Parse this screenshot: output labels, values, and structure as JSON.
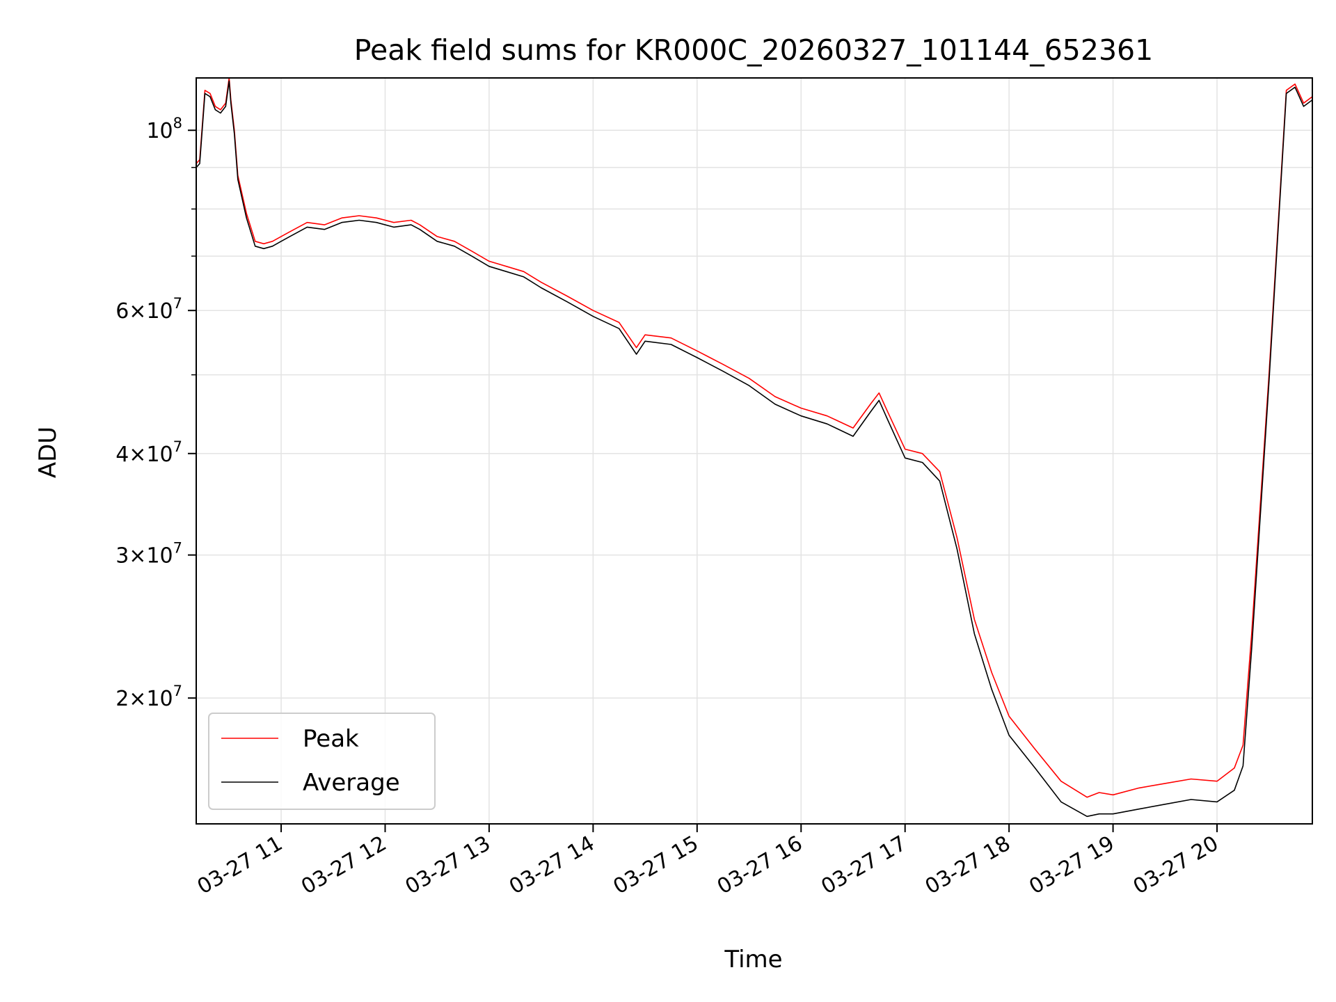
{
  "chart_data": {
    "type": "line",
    "title": "Peak field sums for KR000C_20260327_101144_652361",
    "xlabel": "Time",
    "ylabel": "ADU",
    "x_range": [
      "03-27 10:11",
      "03-27 20:55"
    ],
    "y_scale": "log",
    "ylim": [
      14000000,
      116000000
    ],
    "grid": true,
    "legend_position": "lower-left",
    "x_ticks": [
      "03-27 11",
      "03-27 12",
      "03-27 13",
      "03-27 14",
      "03-27 15",
      "03-27 16",
      "03-27 17",
      "03-27 18",
      "03-27 19",
      "03-27 20"
    ],
    "y_ticks": [
      {
        "value": 100000000,
        "mantissa": "",
        "exponent": "8"
      },
      {
        "value": 60000000,
        "mantissa": "6",
        "exponent": "7"
      },
      {
        "value": 40000000,
        "mantissa": "4",
        "exponent": "7"
      },
      {
        "value": 30000000,
        "mantissa": "3",
        "exponent": "7"
      },
      {
        "value": 20000000,
        "mantissa": "2",
        "exponent": "7"
      }
    ],
    "y_minor_ticks": [
      90000000,
      80000000,
      70000000,
      50000000
    ],
    "series": [
      {
        "name": "Peak",
        "color": "#ff0000",
        "x": [
          "10:11",
          "10:13",
          "10:16",
          "10:19",
          "10:22",
          "10:25",
          "10:28",
          "10:30",
          "10:31",
          "10:33",
          "10:35",
          "10:40",
          "10:45",
          "10:50",
          "10:55",
          "11:00",
          "11:05",
          "11:15",
          "11:25",
          "11:35",
          "11:45",
          "11:55",
          "12:05",
          "12:15",
          "12:20",
          "12:30",
          "12:40",
          "12:50",
          "13:00",
          "13:10",
          "13:20",
          "13:30",
          "13:45",
          "14:00",
          "14:15",
          "14:25",
          "14:30",
          "14:45",
          "15:00",
          "15:15",
          "15:30",
          "15:45",
          "16:00",
          "16:15",
          "16:20",
          "16:30",
          "16:40",
          "16:45",
          "16:50",
          "17:00",
          "17:10",
          "17:20",
          "17:30",
          "17:40",
          "17:50",
          "18:00",
          "18:15",
          "18:30",
          "18:45",
          "18:52",
          "19:00",
          "19:15",
          "19:30",
          "19:45",
          "20:00",
          "20:10",
          "20:15",
          "20:20",
          "20:30",
          "20:40",
          "20:45",
          "20:50",
          "20:55"
        ],
        "y": [
          91000000,
          92000000,
          112000000,
          111000000,
          107000000,
          106000000,
          108000000,
          116000000,
          109000000,
          100000000,
          88000000,
          79000000,
          73000000,
          72500000,
          73000000,
          74000000,
          75000000,
          77000000,
          76500000,
          78000000,
          78500000,
          78000000,
          77000000,
          77500000,
          76500000,
          74000000,
          73000000,
          71000000,
          69000000,
          68000000,
          67000000,
          65000000,
          62500000,
          60000000,
          58000000,
          54000000,
          56000000,
          55500000,
          53500000,
          51500000,
          49500000,
          47000000,
          45500000,
          44500000,
          44000000,
          43000000,
          46000000,
          47500000,
          45000000,
          40500000,
          40000000,
          38000000,
          31500000,
          25000000,
          21500000,
          19000000,
          17300000,
          15800000,
          15100000,
          15300000,
          15200000,
          15500000,
          15700000,
          15900000,
          15800000,
          16400000,
          17500000,
          24000000,
          50000000,
          112000000,
          114000000,
          108000000,
          110000000
        ]
      },
      {
        "name": "Average",
        "color": "#000000",
        "x": [
          "10:11",
          "10:13",
          "10:16",
          "10:19",
          "10:22",
          "10:25",
          "10:28",
          "10:30",
          "10:31",
          "10:33",
          "10:35",
          "10:40",
          "10:45",
          "10:50",
          "10:55",
          "11:00",
          "11:05",
          "11:15",
          "11:25",
          "11:35",
          "11:45",
          "11:55",
          "12:05",
          "12:15",
          "12:20",
          "12:30",
          "12:40",
          "12:50",
          "13:00",
          "13:10",
          "13:20",
          "13:30",
          "13:45",
          "14:00",
          "14:15",
          "14:25",
          "14:30",
          "14:45",
          "15:00",
          "15:15",
          "15:30",
          "15:45",
          "16:00",
          "16:15",
          "16:20",
          "16:30",
          "16:40",
          "16:45",
          "16:50",
          "17:00",
          "17:10",
          "17:20",
          "17:30",
          "17:40",
          "17:50",
          "18:00",
          "18:15",
          "18:30",
          "18:45",
          "18:52",
          "19:00",
          "19:15",
          "19:30",
          "19:45",
          "20:00",
          "20:10",
          "20:15",
          "20:20",
          "20:30",
          "20:40",
          "20:45",
          "20:50",
          "20:55"
        ],
        "y": [
          90000000,
          91000000,
          111000000,
          110000000,
          106000000,
          105000000,
          107000000,
          115000000,
          108000000,
          99000000,
          87000000,
          78000000,
          72000000,
          71500000,
          72000000,
          73000000,
          74000000,
          76000000,
          75500000,
          77000000,
          77500000,
          77000000,
          76000000,
          76500000,
          75500000,
          73000000,
          72000000,
          70000000,
          68000000,
          67000000,
          66000000,
          64000000,
          61500000,
          59000000,
          57000000,
          53000000,
          55000000,
          54500000,
          52500000,
          50500000,
          48500000,
          46000000,
          44500000,
          43500000,
          43000000,
          42000000,
          45000000,
          46500000,
          44000000,
          39500000,
          39000000,
          37000000,
          30500000,
          24000000,
          20500000,
          18000000,
          16400000,
          14900000,
          14300000,
          14400000,
          14400000,
          14600000,
          14800000,
          15000000,
          14900000,
          15400000,
          16500000,
          23000000,
          49000000,
          111000000,
          113000000,
          107000000,
          109000000
        ]
      }
    ]
  }
}
